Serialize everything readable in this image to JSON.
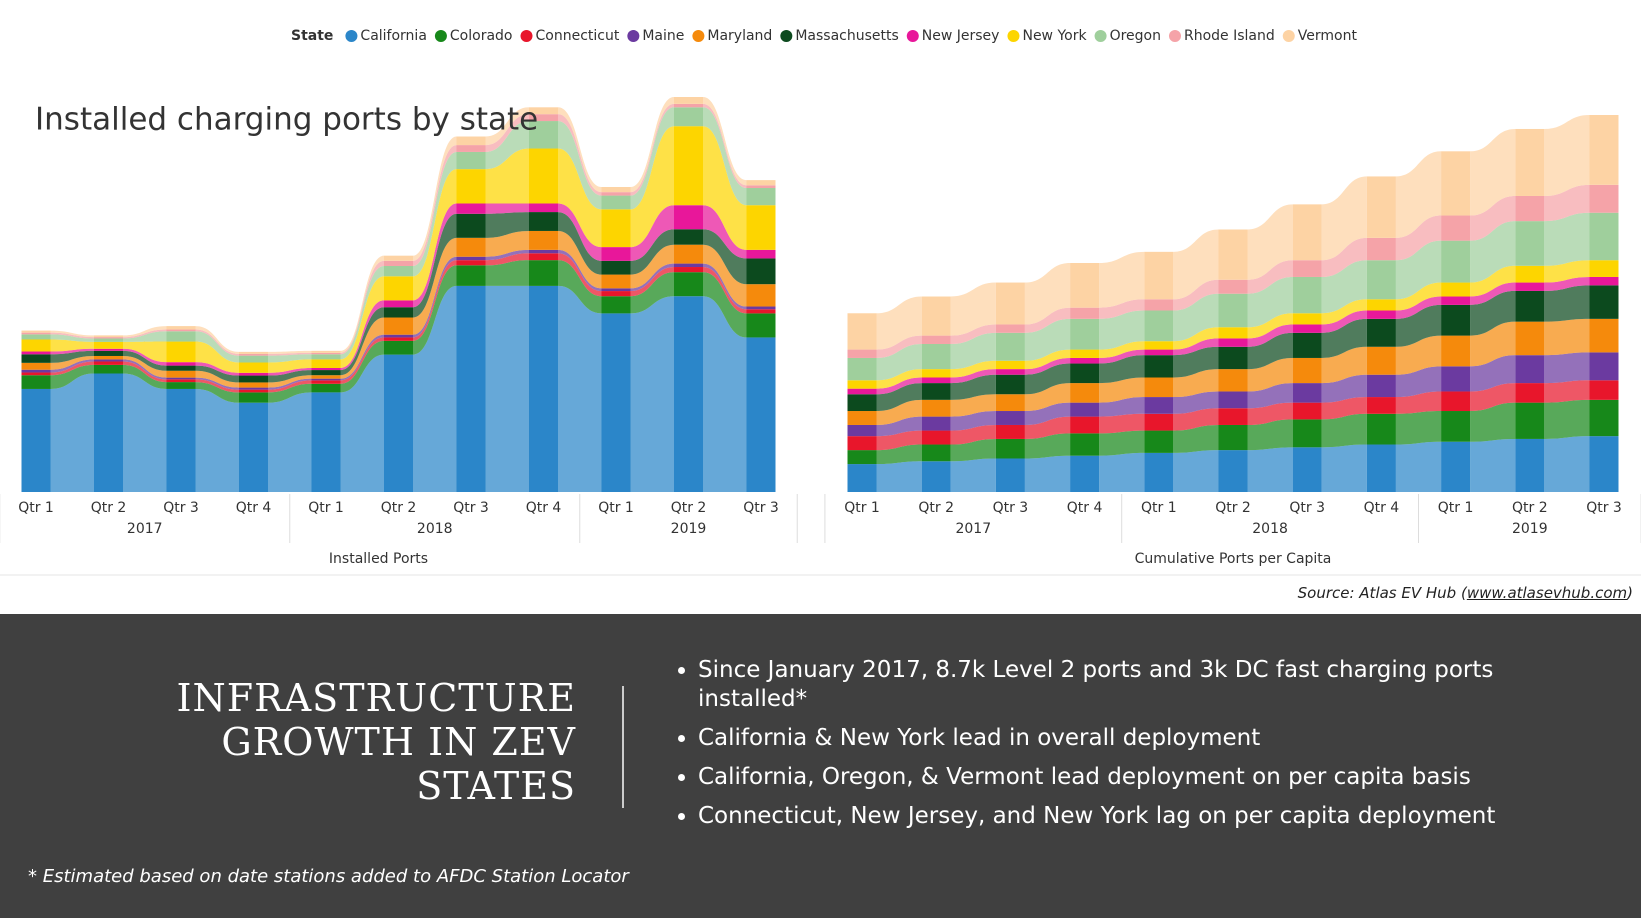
{
  "legend_title": "State",
  "chart_data": [
    {
      "type": "ribbon",
      "title": "Installed charging ports by state",
      "x_title": "Installed Ports",
      "categories": [
        "Qtr 1",
        "Qtr 2",
        "Qtr 3",
        "Qtr 4",
        "Qtr 1",
        "Qtr 2",
        "Qtr 3",
        "Qtr 4",
        "Qtr 1",
        "Qtr 2",
        "Qtr 3"
      ],
      "years": [
        "2017",
        "2018",
        "2019"
      ],
      "series": [
        {
          "name": "California",
          "color": "#2b86c9",
          "values": [
            300,
            345,
            300,
            260,
            290,
            400,
            600,
            600,
            520,
            570,
            450
          ]
        },
        {
          "name": "Colorado",
          "color": "#17881a",
          "values": [
            40,
            25,
            20,
            30,
            25,
            40,
            60,
            75,
            50,
            70,
            70
          ]
        },
        {
          "name": "Connecticut",
          "color": "#e8162b",
          "values": [
            8,
            10,
            8,
            8,
            10,
            10,
            15,
            20,
            15,
            15,
            12
          ]
        },
        {
          "name": "Maine",
          "color": "#6b3aa0",
          "values": [
            8,
            6,
            5,
            6,
            5,
            8,
            10,
            10,
            8,
            10,
            8
          ]
        },
        {
          "name": "Maryland",
          "color": "#f58a0c",
          "values": [
            20,
            10,
            20,
            15,
            10,
            50,
            55,
            55,
            40,
            55,
            65
          ]
        },
        {
          "name": "Massachusetts",
          "color": "#0c4a1e",
          "values": [
            25,
            15,
            15,
            20,
            15,
            30,
            70,
            55,
            40,
            45,
            75
          ]
        },
        {
          "name": "New Jersey",
          "color": "#e8179a",
          "values": [
            8,
            6,
            10,
            8,
            6,
            20,
            30,
            25,
            40,
            70,
            25
          ]
        },
        {
          "name": "New York",
          "color": "#fdd500",
          "values": [
            35,
            20,
            60,
            30,
            25,
            70,
            100,
            160,
            110,
            230,
            130
          ]
        },
        {
          "name": "Oregon",
          "color": "#9fcf9c",
          "values": [
            15,
            10,
            30,
            20,
            15,
            30,
            50,
            80,
            40,
            55,
            50
          ]
        },
        {
          "name": "Rhode Island",
          "color": "#f5a3a8",
          "values": [
            5,
            4,
            5,
            5,
            4,
            15,
            20,
            20,
            10,
            10,
            8
          ]
        },
        {
          "name": "Vermont",
          "color": "#fdd3a4",
          "values": [
            6,
            5,
            10,
            6,
            6,
            15,
            25,
            20,
            15,
            20,
            15
          ]
        }
      ]
    },
    {
      "type": "ribbon",
      "x_title": "Cumulative Ports per Capita",
      "categories": [
        "Qtr 1",
        "Qtr 2",
        "Qtr 3",
        "Qtr 4",
        "Qtr 1",
        "Qtr 2",
        "Qtr 3",
        "Qtr 4",
        "Qtr 1",
        "Qtr 2",
        "Qtr 3"
      ],
      "years": [
        "2017",
        "2018",
        "2019"
      ],
      "series": [
        {
          "name": "California",
          "color": "#2b86c9",
          "values": [
            10,
            11,
            12,
            13,
            14,
            15,
            16,
            17,
            18,
            19,
            20
          ]
        },
        {
          "name": "Colorado",
          "color": "#17881a",
          "values": [
            5,
            6,
            7,
            8,
            8,
            9,
            10,
            11,
            11,
            13,
            13
          ]
        },
        {
          "name": "Connecticut",
          "color": "#e8162b",
          "values": [
            5,
            5,
            5,
            6,
            6,
            6,
            6,
            6,
            7,
            7,
            7
          ]
        },
        {
          "name": "Maine",
          "color": "#6b3aa0",
          "values": [
            4,
            5,
            5,
            5,
            6,
            6,
            7,
            8,
            9,
            10,
            10
          ]
        },
        {
          "name": "Maryland",
          "color": "#f58a0c",
          "values": [
            5,
            6,
            6,
            7,
            7,
            8,
            9,
            10,
            11,
            12,
            12
          ]
        },
        {
          "name": "Massachusetts",
          "color": "#0c4a1e",
          "values": [
            6,
            6,
            7,
            7,
            8,
            8,
            9,
            10,
            11,
            11,
            12
          ]
        },
        {
          "name": "New Jersey",
          "color": "#e8179a",
          "values": [
            2,
            2,
            2,
            2,
            2,
            3,
            3,
            3,
            3,
            3,
            3
          ]
        },
        {
          "name": "New York",
          "color": "#fdd500",
          "values": [
            3,
            3,
            3,
            3,
            3,
            4,
            4,
            4,
            5,
            6,
            6
          ]
        },
        {
          "name": "Oregon",
          "color": "#9fcf9c",
          "values": [
            8,
            9,
            10,
            11,
            11,
            12,
            13,
            14,
            15,
            16,
            17
          ]
        },
        {
          "name": "Rhode Island",
          "color": "#f5a3a8",
          "values": [
            3,
            3,
            3,
            4,
            4,
            5,
            6,
            8,
            9,
            9,
            10
          ]
        },
        {
          "name": "Vermont",
          "color": "#fdd3a4",
          "values": [
            13,
            14,
            15,
            16,
            17,
            18,
            20,
            22,
            23,
            24,
            25
          ]
        }
      ]
    }
  ],
  "source": {
    "prefix": "Source: Atlas EV Hub (",
    "link": "www.atlasevhub.com",
    "suffix": ")"
  },
  "panel": {
    "heading": [
      "INFRASTRUCTURE",
      "GROWTH IN ZEV",
      "STATES"
    ],
    "bullets": [
      "Since January 2017, 8.7k Level 2 ports and 3k DC fast charging ports installed*",
      "California & New York lead in overall deployment",
      "California, Oregon, & Vermont lead deployment on per capita basis",
      "Connecticut, New Jersey, and New York lag on per capita deployment"
    ],
    "footnote": "* Estimated based on date stations added to AFDC Station Locator"
  }
}
